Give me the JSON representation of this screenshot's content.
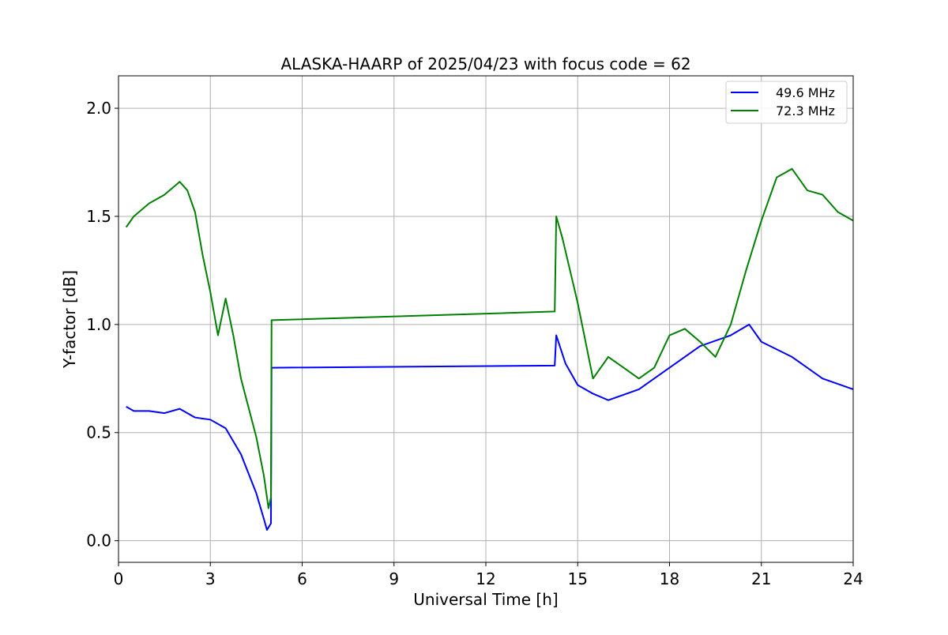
{
  "chart_data": {
    "type": "line",
    "title": "ALASKA-HAARP of 2025/04/23 with focus code = 62",
    "xlabel": "Universal Time [h]",
    "ylabel": "Y-factor [dB]",
    "xlim": [
      0,
      24
    ],
    "ylim": [
      -0.1,
      2.15
    ],
    "xticks": [
      0,
      3,
      6,
      9,
      12,
      15,
      18,
      21,
      24
    ],
    "yticks": [
      0.0,
      0.5,
      1.0,
      1.5,
      2.0
    ],
    "xtick_labels": [
      "0",
      "3",
      "6",
      "9",
      "12",
      "15",
      "18",
      "21",
      "24"
    ],
    "ytick_labels": [
      "0.0",
      "0.5",
      "1.0",
      "1.5",
      "2.0"
    ],
    "grid": true,
    "legend_position": "top-right",
    "series": [
      {
        "name": "49.6 MHz",
        "color": "#0000ff",
        "points": [
          [
            0.25,
            0.62
          ],
          [
            0.5,
            0.6
          ],
          [
            1.0,
            0.6
          ],
          [
            1.5,
            0.59
          ],
          [
            2.0,
            0.61
          ],
          [
            2.5,
            0.57
          ],
          [
            3.0,
            0.56
          ],
          [
            3.5,
            0.52
          ],
          [
            4.0,
            0.4
          ],
          [
            4.5,
            0.22
          ],
          [
            4.75,
            0.1
          ],
          [
            4.85,
            0.05
          ],
          [
            4.98,
            0.08
          ],
          [
            5.0,
            0.8
          ],
          [
            14.25,
            0.81
          ],
          [
            14.3,
            0.95
          ],
          [
            14.6,
            0.82
          ],
          [
            15.0,
            0.72
          ],
          [
            15.5,
            0.68
          ],
          [
            16.0,
            0.65
          ],
          [
            17.0,
            0.7
          ],
          [
            18.0,
            0.8
          ],
          [
            19.0,
            0.9
          ],
          [
            20.0,
            0.95
          ],
          [
            20.6,
            1.0
          ],
          [
            21.0,
            0.92
          ],
          [
            22.0,
            0.85
          ],
          [
            23.0,
            0.75
          ],
          [
            24.0,
            0.7
          ]
        ]
      },
      {
        "name": "72.3 MHz",
        "color": "#008000",
        "points": [
          [
            0.25,
            1.45
          ],
          [
            0.5,
            1.5
          ],
          [
            1.0,
            1.56
          ],
          [
            1.5,
            1.6
          ],
          [
            2.0,
            1.66
          ],
          [
            2.25,
            1.62
          ],
          [
            2.5,
            1.52
          ],
          [
            2.75,
            1.32
          ],
          [
            3.0,
            1.15
          ],
          [
            3.25,
            0.95
          ],
          [
            3.5,
            1.12
          ],
          [
            3.75,
            0.95
          ],
          [
            4.0,
            0.75
          ],
          [
            4.5,
            0.48
          ],
          [
            4.75,
            0.3
          ],
          [
            4.9,
            0.15
          ],
          [
            4.98,
            0.2
          ],
          [
            5.0,
            1.02
          ],
          [
            14.25,
            1.06
          ],
          [
            14.3,
            1.5
          ],
          [
            14.5,
            1.4
          ],
          [
            15.0,
            1.1
          ],
          [
            15.5,
            0.75
          ],
          [
            16.0,
            0.85
          ],
          [
            16.5,
            0.8
          ],
          [
            17.0,
            0.75
          ],
          [
            17.5,
            0.8
          ],
          [
            18.0,
            0.95
          ],
          [
            18.5,
            0.98
          ],
          [
            19.0,
            0.92
          ],
          [
            19.5,
            0.85
          ],
          [
            20.0,
            1.0
          ],
          [
            20.5,
            1.25
          ],
          [
            21.0,
            1.48
          ],
          [
            21.5,
            1.68
          ],
          [
            22.0,
            1.72
          ],
          [
            22.5,
            1.62
          ],
          [
            23.0,
            1.6
          ],
          [
            23.5,
            1.52
          ],
          [
            24.0,
            1.48
          ]
        ]
      }
    ]
  }
}
